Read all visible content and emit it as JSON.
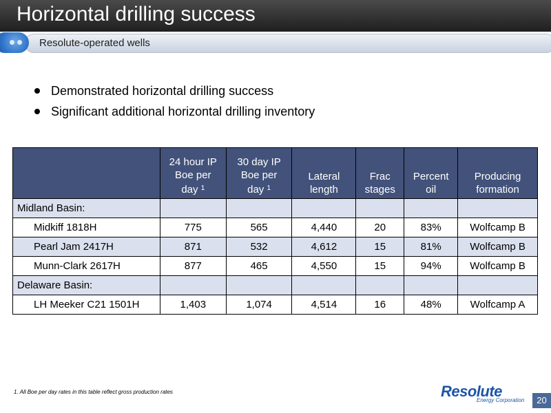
{
  "header": {
    "title": "Horizontal drilling success",
    "subtitle": "Resolute-operated wells"
  },
  "bullets": [
    "Demonstrated horizontal drilling success",
    "Significant additional horizontal drilling inventory"
  ],
  "table": {
    "columns": [
      {
        "lines": [
          "24 hour IP",
          "Boe per",
          "day"
        ],
        "footnote": "1"
      },
      {
        "lines": [
          "30 day IP",
          "Boe per",
          "day"
        ],
        "footnote": "1"
      },
      {
        "lines": [
          "Lateral",
          "length"
        ]
      },
      {
        "lines": [
          "Frac",
          "stages"
        ]
      },
      {
        "lines": [
          "Percent",
          "oil"
        ]
      },
      {
        "lines": [
          "Producing",
          "formation"
        ]
      }
    ],
    "groups": [
      {
        "name": "Midland Basin:",
        "rows": [
          {
            "well": "Midkiff 1818H",
            "ip24": "775",
            "ip30": "565",
            "lateral": "4,440",
            "frac": "20",
            "oil": "83%",
            "formation": "Wolfcamp B"
          },
          {
            "well": "Pearl Jam 2417H",
            "ip24": "871",
            "ip30": "532",
            "lateral": "4,612",
            "frac": "15",
            "oil": "81%",
            "formation": "Wolfcamp B"
          },
          {
            "well": "Munn-Clark 2617H",
            "ip24": "877",
            "ip30": "465",
            "lateral": "4,550",
            "frac": "15",
            "oil": "94%",
            "formation": "Wolfcamp B"
          }
        ]
      },
      {
        "name": "Delaware Basin:",
        "rows": [
          {
            "well": "LH Meeker C21 1501H",
            "ip24": "1,403",
            "ip30": "1,074",
            "lateral": "4,514",
            "frac": "16",
            "oil": "48%",
            "formation": "Wolfcamp A"
          }
        ]
      }
    ]
  },
  "footnote": "1.  All Boe per day rates in this table reflect gross production rates",
  "logo": {
    "name": "Resolute",
    "tagline": "Energy Corporation"
  },
  "page_number": "20",
  "colors": {
    "header_fill": "#42527a",
    "row_shade": "#dbe0ee",
    "brand_blue": "#1d55a6",
    "page_badge": "#4a6996"
  }
}
